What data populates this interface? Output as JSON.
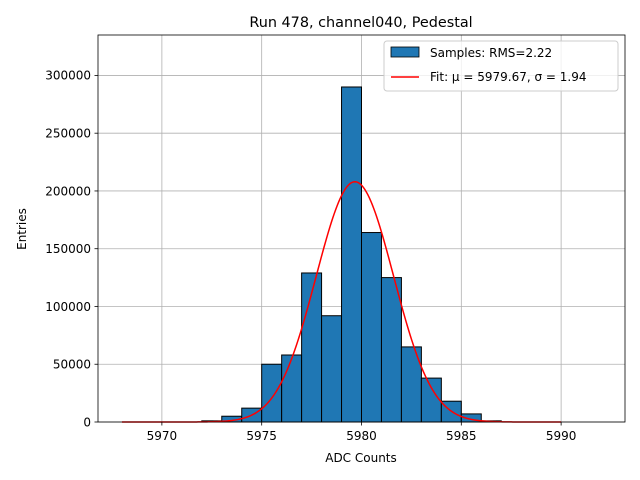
{
  "chart_data": {
    "type": "bar",
    "title": "Run 478, channel040, Pedestal",
    "xlabel": "ADC Counts",
    "ylabel": "Entries",
    "xlim": [
      5966.8,
      5993.2
    ],
    "ylim": [
      0,
      335000
    ],
    "grid": true,
    "legend_position": "top-right",
    "x_ticks": [
      5970,
      5975,
      5980,
      5985,
      5990
    ],
    "y_ticks": [
      0,
      50000,
      100000,
      150000,
      200000,
      250000,
      300000
    ],
    "x_tick_labels": [
      "5970",
      "5975",
      "5980",
      "5985",
      "5990"
    ],
    "y_tick_labels": [
      "0",
      "50000",
      "100000",
      "150000",
      "200000",
      "250000",
      "300000"
    ],
    "histogram": {
      "name": "Samples: RMS=2.22",
      "color": "#1f77b4",
      "edge_color": "#000000",
      "bins": [
        {
          "left": 5972,
          "right": 5973,
          "count": 1000
        },
        {
          "left": 5973,
          "right": 5974,
          "count": 5000
        },
        {
          "left": 5974,
          "right": 5975,
          "count": 12000
        },
        {
          "left": 5975,
          "right": 5976,
          "count": 50000
        },
        {
          "left": 5976,
          "right": 5977,
          "count": 58000
        },
        {
          "left": 5977,
          "right": 5978,
          "count": 129000
        },
        {
          "left": 5978,
          "right": 5979,
          "count": 92000
        },
        {
          "left": 5979,
          "right": 5980,
          "count": 290000
        },
        {
          "left": 5980,
          "right": 5981,
          "count": 164000
        },
        {
          "left": 5981,
          "right": 5982,
          "count": 125000
        },
        {
          "left": 5982,
          "right": 5983,
          "count": 65000
        },
        {
          "left": 5983,
          "right": 5984,
          "count": 38000
        },
        {
          "left": 5984,
          "right": 5985,
          "count": 18000
        },
        {
          "left": 5985,
          "right": 5986,
          "count": 7000
        },
        {
          "left": 5986,
          "right": 5987,
          "count": 1000
        }
      ]
    },
    "fit": {
      "name": "Fit: μ = 5979.67, σ = 1.94",
      "color": "#ff0000",
      "mu": 5979.67,
      "sigma": 1.94,
      "amplitude": 208000,
      "x_range": [
        5968,
        5990
      ]
    }
  }
}
